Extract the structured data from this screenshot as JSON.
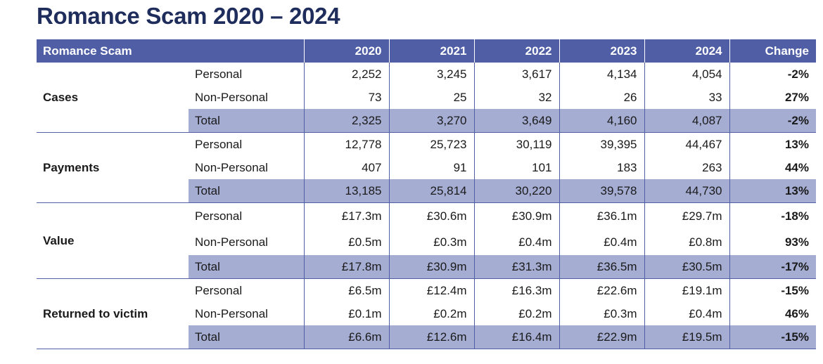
{
  "title": "Romance Scam 2020 – 2024",
  "table": {
    "header": {
      "label": "Romance Scam",
      "years": [
        "2020",
        "2021",
        "2022",
        "2023",
        "2024"
      ],
      "change": "Change"
    },
    "groups": [
      {
        "name": "Cases",
        "rows": [
          {
            "label": "Personal",
            "values": [
              "2,252",
              "3,245",
              "3,617",
              "4,134",
              "4,054"
            ],
            "change": "-2%"
          },
          {
            "label": "Non-Personal",
            "values": [
              "73",
              "25",
              "32",
              "26",
              "33"
            ],
            "change": "27%"
          },
          {
            "label": "Total",
            "values": [
              "2,325",
              "3,270",
              "3,649",
              "4,160",
              "4,087"
            ],
            "change": "-2%"
          }
        ]
      },
      {
        "name": "Payments",
        "rows": [
          {
            "label": "Personal",
            "values": [
              "12,778",
              "25,723",
              "30,119",
              "39,395",
              "44,467"
            ],
            "change": "13%"
          },
          {
            "label": "Non-Personal",
            "values": [
              "407",
              "91",
              "101",
              "183",
              "263"
            ],
            "change": "44%"
          },
          {
            "label": "Total",
            "values": [
              "13,185",
              "25,814",
              "30,220",
              "39,578",
              "44,730"
            ],
            "change": "13%"
          }
        ]
      },
      {
        "name": "Value",
        "rows": [
          {
            "label": "Personal",
            "values": [
              "£17.3m",
              "£30.6m",
              "£30.9m",
              "£36.1m",
              "£29.7m"
            ],
            "change": "-18%"
          },
          {
            "label": "Non-Personal",
            "values": [
              "£0.5m",
              "£0.3m",
              "£0.4m",
              "£0.4m",
              "£0.8m"
            ],
            "change": "93%"
          },
          {
            "label": "Total",
            "values": [
              "£17.8m",
              "£30.9m",
              "£31.3m",
              "£36.5m",
              "£30.5m"
            ],
            "change": "-17%"
          }
        ]
      },
      {
        "name": "Returned to victim",
        "rows": [
          {
            "label": "Personal",
            "values": [
              "£6.5m",
              "£12.4m",
              "£16.3m",
              "£22.6m",
              "£19.1m"
            ],
            "change": "-15%"
          },
          {
            "label": "Non-Personal",
            "values": [
              "£0.1m",
              "£0.2m",
              "£0.2m",
              "£0.3m",
              "£0.4m"
            ],
            "change": "46%"
          },
          {
            "label": "Total",
            "values": [
              "£6.6m",
              "£12.6m",
              "£16.4m",
              "£22.9m",
              "£19.5m"
            ],
            "change": "-15%"
          }
        ]
      }
    ]
  }
}
